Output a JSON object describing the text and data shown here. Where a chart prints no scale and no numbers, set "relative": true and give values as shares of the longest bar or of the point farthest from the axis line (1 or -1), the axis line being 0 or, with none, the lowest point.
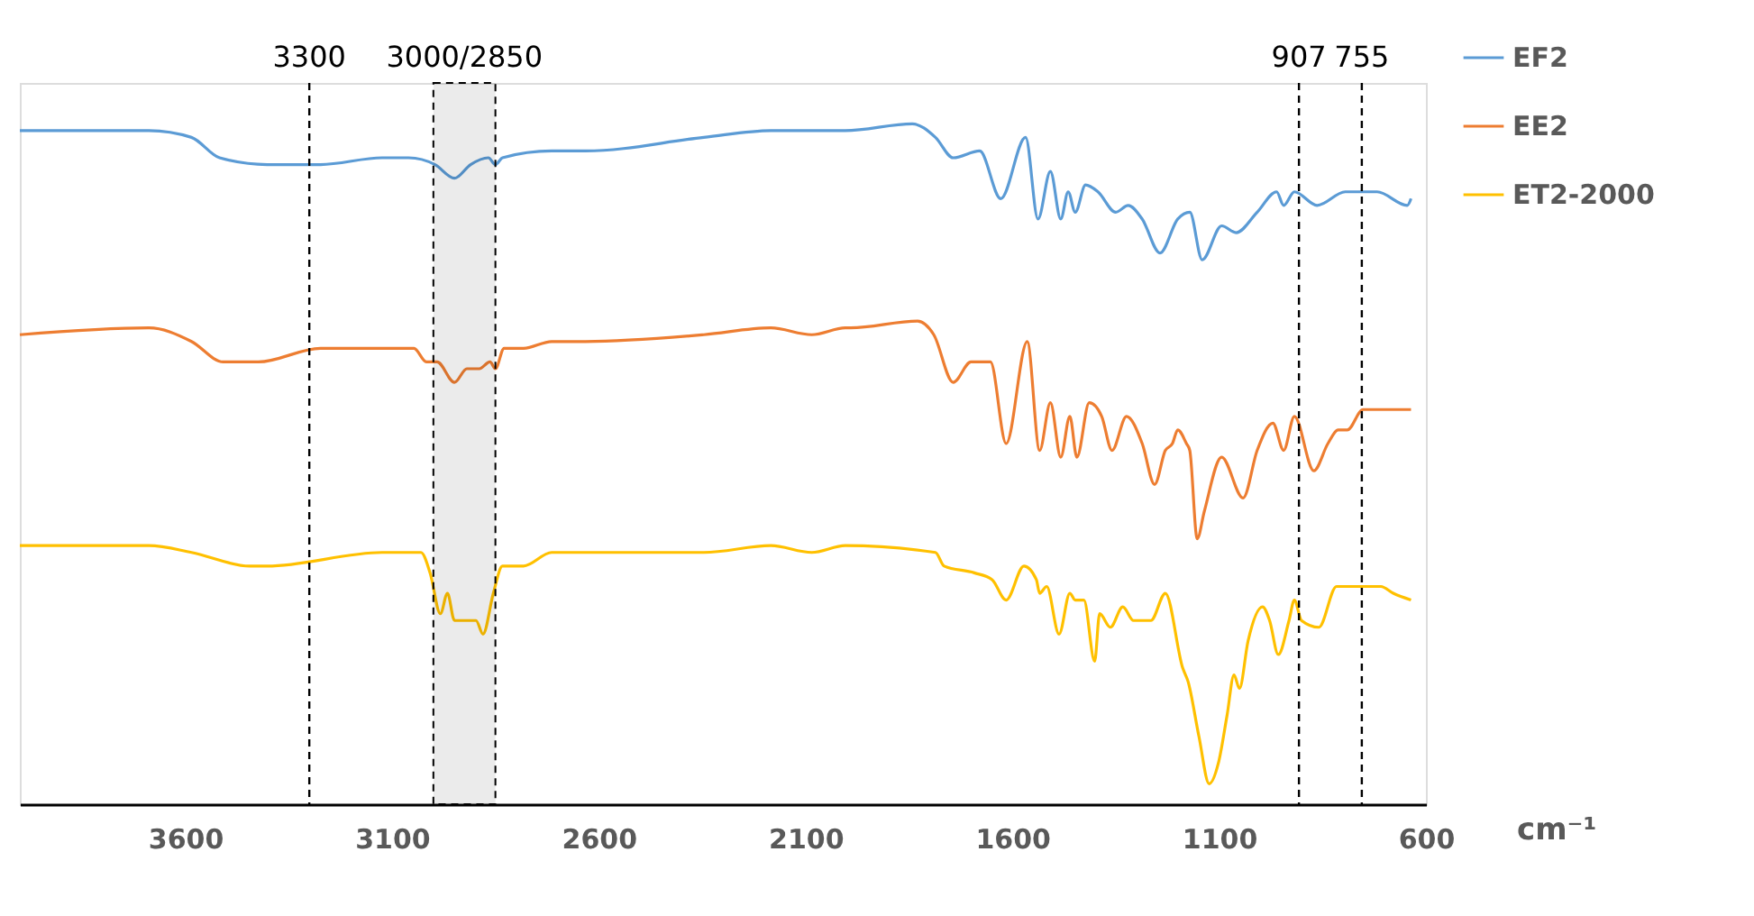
{
  "chart_data": {
    "type": "line",
    "relative": true,
    "xlabel": "cm⁻¹",
    "xlim": [
      4000,
      600
    ],
    "xticks": [
      3600,
      3100,
      2600,
      2100,
      1600,
      1100,
      600
    ],
    "legend": "top right",
    "line_style": "solid",
    "series": [
      {
        "name": "EF2",
        "color": "#5b9bd5",
        "x": [
          4000,
          3688,
          3585,
          3517,
          3402,
          3273,
          3124,
          3060,
          2996,
          2949,
          2910,
          2867,
          2850,
          2833,
          2714,
          2632,
          2346,
          2184,
          2004,
          1842,
          1786,
          1743,
          1679,
          1628,
          1568,
          1538,
          1508,
          1483,
          1465,
          1448,
          1423,
          1393,
          1350,
          1320,
          1286,
          1243,
          1200,
          1171,
          1141,
          1094,
          1059,
          1008,
          961,
          944,
          918,
          863,
          795,
          718,
          645,
          636
        ],
        "values": [
          0.99,
          0.99,
          0.98,
          0.95,
          0.94,
          0.94,
          0.95,
          0.95,
          0.94,
          0.92,
          0.94,
          0.95,
          0.94,
          0.95,
          0.96,
          0.96,
          0.98,
          0.99,
          0.99,
          1,
          0.98,
          0.95,
          0.96,
          0.89,
          0.98,
          0.86,
          0.93,
          0.86,
          0.9,
          0.87,
          0.91,
          0.9,
          0.87,
          0.88,
          0.86,
          0.81,
          0.86,
          0.87,
          0.8,
          0.85,
          0.84,
          0.87,
          0.9,
          0.88,
          0.9,
          0.88,
          0.9,
          0.9,
          0.88,
          0.89
        ]
      },
      {
        "name": "EE2",
        "color": "#ed7d31",
        "x": [
          4000,
          3688,
          3585,
          3508,
          3423,
          3273,
          3124,
          3047,
          3017,
          2991,
          2949,
          2919,
          2889,
          2863,
          2850,
          2829,
          2782,
          2714,
          2632,
          2346,
          2184,
          2085,
          2004,
          1991,
          1829,
          1790,
          1743,
          1700,
          1653,
          1615,
          1564,
          1534,
          1508,
          1483,
          1461,
          1444,
          1414,
          1384,
          1359,
          1324,
          1286,
          1256,
          1230,
          1213,
          1200,
          1179,
          1171,
          1153,
          1136,
          1094,
          1042,
          1008,
          970,
          944,
          918,
          871,
          837,
          812,
          790,
          752,
          688,
          636
        ],
        "values": [
          0.69,
          0.7,
          0.68,
          0.65,
          0.65,
          0.67,
          0.67,
          0.67,
          0.65,
          0.65,
          0.62,
          0.64,
          0.64,
          0.65,
          0.64,
          0.67,
          0.67,
          0.68,
          0.68,
          0.69,
          0.7,
          0.69,
          0.7,
          0.7,
          0.71,
          0.69,
          0.62,
          0.65,
          0.65,
          0.53,
          0.68,
          0.52,
          0.59,
          0.51,
          0.57,
          0.51,
          0.59,
          0.57,
          0.52,
          0.57,
          0.53,
          0.47,
          0.52,
          0.53,
          0.55,
          0.53,
          0.52,
          0.39,
          0.43,
          0.51,
          0.45,
          0.52,
          0.56,
          0.52,
          0.57,
          0.49,
          0.53,
          0.55,
          0.55,
          0.58,
          0.58,
          0.58
        ]
      },
      {
        "name": "ET2-2000",
        "color": "#ffc000",
        "x": [
          4000,
          3688,
          3585,
          3444,
          3402,
          3124,
          3030,
          3008,
          2983,
          2966,
          2949,
          2923,
          2897,
          2880,
          2855,
          2833,
          2782,
          2714,
          2632,
          2346,
          2184,
          2085,
          2004,
          1786,
          1765,
          1692,
          1649,
          1615,
          1572,
          1542,
          1534,
          1517,
          1487,
          1461,
          1448,
          1427,
          1401,
          1389,
          1363,
          1333,
          1307,
          1265,
          1230,
          1188,
          1175,
          1149,
          1124,
          1102,
          1081,
          1064,
          1051,
          1030,
          995,
          978,
          957,
          931,
          918,
          901,
          859,
          816,
          752,
          709,
          679,
          636
        ],
        "values": [
          0.38,
          0.38,
          0.37,
          0.35,
          0.35,
          0.37,
          0.37,
          0.34,
          0.28,
          0.31,
          0.27,
          0.27,
          0.27,
          0.25,
          0.31,
          0.35,
          0.35,
          0.37,
          0.37,
          0.37,
          0.38,
          0.37,
          0.38,
          0.37,
          0.35,
          0.34,
          0.33,
          0.3,
          0.35,
          0.33,
          0.31,
          0.32,
          0.25,
          0.31,
          0.3,
          0.3,
          0.21,
          0.28,
          0.26,
          0.29,
          0.27,
          0.27,
          0.31,
          0.2,
          0.18,
          0.1,
          0.03,
          0.06,
          0.13,
          0.19,
          0.17,
          0.24,
          0.29,
          0.27,
          0.22,
          0.27,
          0.3,
          0.27,
          0.26,
          0.32,
          0.32,
          0.32,
          0.31,
          0.3
        ]
      }
    ],
    "ref_lines": [
      {
        "axis": "x",
        "value": 3300,
        "label": "3300",
        "color": "#000000",
        "line_style": "dashed"
      },
      {
        "axis": "x",
        "value": 907,
        "label": "907",
        "color": "#000000",
        "line_style": "dashed"
      },
      {
        "axis": "x",
        "value": 755,
        "label": "755",
        "color": "#000000",
        "line_style": "dashed"
      }
    ],
    "bands": [
      {
        "axis": "x",
        "from": 3000,
        "to": 2850,
        "label": "3000/2850",
        "color": "#000000"
      }
    ]
  }
}
